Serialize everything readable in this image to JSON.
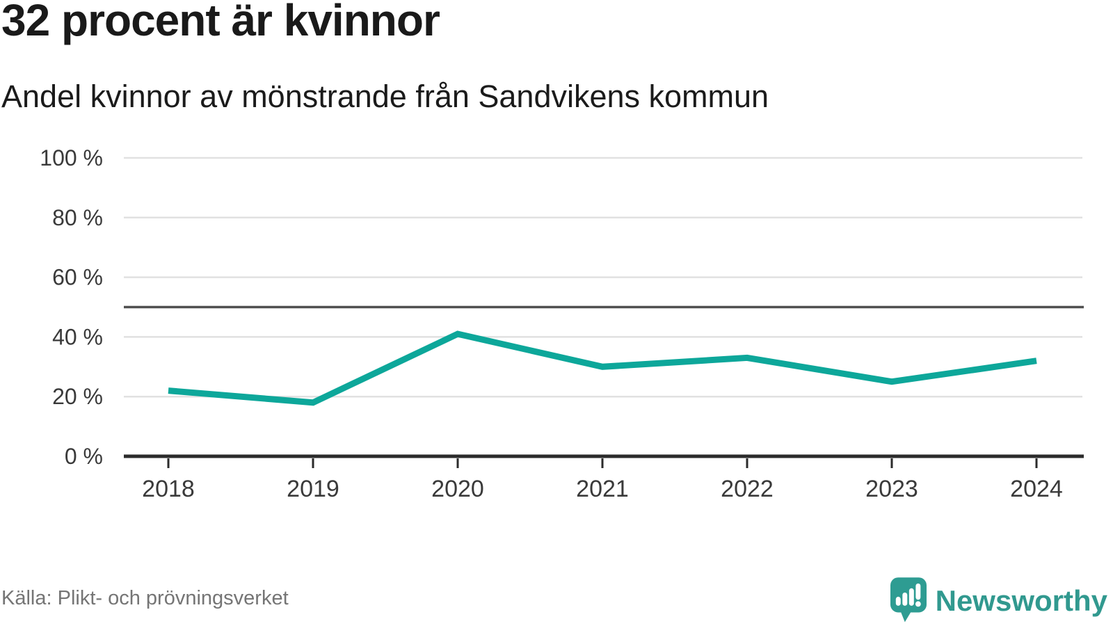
{
  "header": {
    "title": "32 procent är kvinnor",
    "subtitle": "Andel kvinnor av mönstrande från Sandvikens kommun"
  },
  "footer": {
    "source_label": "Källa: Plikt- och prövningsverket",
    "brand_name": "Newsworthy"
  },
  "colors": {
    "line": "#0da79a",
    "grid": "#e1e1e1",
    "reference_line": "#4f4f4f",
    "axis": "#2b2b2b",
    "tick_label": "#3a3a3a",
    "title_text": "#1a1a1a",
    "source_text": "#757575",
    "brand_teal": "#31998f",
    "logo_fill": "#2e9c92"
  },
  "chart_data": {
    "type": "line",
    "title": "32 procent är kvinnor",
    "subtitle": "Andel kvinnor av mönstrande från Sandvikens kommun",
    "xlabel": "",
    "ylabel": "",
    "x": [
      "2018",
      "2019",
      "2020",
      "2021",
      "2022",
      "2023",
      "2024"
    ],
    "series": [
      {
        "name": "Andel kvinnor av mönstrande",
        "color": "#0da79a",
        "values": [
          22,
          18,
          41,
          30,
          33,
          25,
          32
        ]
      }
    ],
    "ylim": [
      0,
      100
    ],
    "yticks": [
      0,
      20,
      40,
      60,
      80,
      100
    ],
    "ytick_labels": [
      "0 %",
      "20 %",
      "40 %",
      "60 %",
      "80 %",
      "100 %"
    ],
    "reference_line": 50,
    "grid": true,
    "legend": false
  }
}
